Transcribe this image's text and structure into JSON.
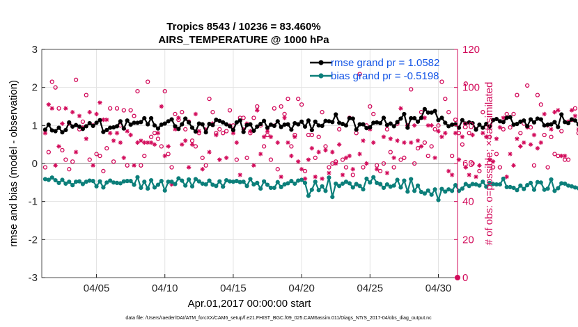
{
  "chart_data": {
    "type": "line",
    "title": "Tropics 8543 / 10236 = 83.460%",
    "subtitle": "AIRS_TEMPERATURE @ 1000 hPa",
    "xlabel": "Apr.01,2017 00:00:00 start",
    "ylabel_left": "rmse and bias (model - observation)",
    "ylabel_right": "# of obs: o=possible; ×=assimilated",
    "footer": "data file: /Users/raeder/DAI/ATM_forcXX/CAM6_setup/f.e21.FHIST_BGC.f09_025.CAM6assim.011/Diags_NTrS_2017-04/obs_diag_output.nc",
    "x_range_days": [
      1,
      31.4
    ],
    "x_tick_values": [
      5,
      10,
      15,
      20,
      25,
      30
    ],
    "x_tick_labels": [
      "04/05",
      "04/10",
      "04/15",
      "04/20",
      "04/25",
      "04/30"
    ],
    "ylim_left": [
      -3,
      3
    ],
    "y_ticks_left": [
      "3",
      "2",
      "1",
      "0",
      "-1",
      "-2",
      "-3"
    ],
    "ylim_right": [
      0,
      120
    ],
    "y_ticks_right": [
      "120",
      "100",
      "80",
      "60",
      "40",
      "20",
      "0"
    ],
    "zero_line": 0,
    "legend": {
      "rmse_label": "rmse grand pr = 1.0582",
      "bias_label": "bias grand pr = -0.5198",
      "placement": "top-right"
    },
    "colors": {
      "rmse": "#000000",
      "bias": "#0c7f7a",
      "obs": "#d20a5a",
      "legend_text": "#1455e6"
    },
    "start_day": 1.25,
    "step_days": 0.25,
    "series": [
      {
        "name": "rmse",
        "axis": "left",
        "values": [
          0.89,
          1.02,
          0.87,
          0.85,
          0.94,
          0.82,
          0.88,
          1.08,
          0.97,
          1.01,
          0.97,
          0.91,
          0.98,
          1.06,
          0.99,
          1.07,
          1.14,
          0.83,
          0.88,
          0.94,
          0.95,
          0.98,
          1.11,
          0.92,
          1.13,
          1.02,
          1.07,
          1.07,
          1.09,
          1.19,
          1.03,
          1.19,
          1.0,
          0.92,
          1.02,
          1.05,
          1.11,
          1.16,
          0.98,
          0.91,
          1.03,
          1.18,
          1.08,
          0.94,
          0.84,
          1.05,
          1.03,
          0.82,
          1.04,
          1.01,
          1.15,
          1.12,
          1.08,
          1.03,
          0.98,
          0.88,
          1.08,
          1.13,
          0.83,
          1.01,
          1.03,
          0.86,
          0.97,
          1.04,
          1.12,
          0.94,
          1.02,
          0.99,
          1.11,
          0.96,
          1.02,
          1.03,
          0.89,
          1.06,
          1.03,
          1.1,
          0.97,
          1.13,
          0.88,
          1.1,
          1.0,
          0.99,
          1.12,
          1.11,
          1.09,
          1.29,
          1.07,
          1.04,
          1.0,
          1.19,
          1.18,
          0.89,
          1.03,
          1.03,
          0.93,
          0.95,
          1.07,
          1.08,
          1.06,
          1.2,
          1.01,
          1.05,
          0.98,
          1.09,
          1.18,
          1.3,
          0.94,
          1.19,
          1.19,
          1.1,
          1.2,
          1.43,
          1.34,
          1.34,
          1.38,
          1.14,
          1.2,
          1.07,
          0.98,
          1.02,
          1.03,
          0.94,
          1.14,
          1.05,
          1.08,
          1.06,
          0.89,
          1.02,
          0.94,
          1.04,
          0.97,
          1.14,
          1.17,
          1.11,
          1.09,
          1.2,
          1.22,
          1.02,
          1.04,
          1.1,
          1.13,
          0.98,
          1.16,
          1.08,
          1.18,
          1.16,
          1.0,
          1.02,
          1.03,
          1.09,
          0.96,
          1.29,
          1.09,
          1.06,
          1.16,
          1.13,
          1.03,
          1.06,
          1.01,
          1.11,
          0.97,
          1.11,
          1.15,
          1.05,
          0.97,
          1.04,
          1.15,
          1.19,
          1.07,
          1.2,
          1.04,
          1.12,
          1.1,
          0.96,
          1.1,
          1.0,
          1.15,
          1.07,
          1.17,
          1.04,
          1.02,
          1.03,
          1.03,
          1.11,
          0.96,
          1.18,
          1.01,
          1.06,
          0.95,
          1.03,
          1.1,
          1.05,
          1.12,
          1.08,
          1.23,
          1.15,
          1.09,
          1.14,
          1.04,
          1.11,
          0.92,
          1.02,
          0.98,
          0.94,
          1.02,
          1.06,
          0.95,
          1.08,
          1.05,
          0.98,
          1.27,
          0.96,
          1.09,
          0.93,
          0.98,
          0.94,
          1.1,
          0.96,
          0.99,
          1.16,
          1.09,
          1.05,
          1.13,
          1.09,
          1.2,
          1.11,
          1.05,
          1.15,
          1.11,
          1.1,
          1.04,
          1.22,
          1.12,
          1.14,
          1.12,
          1.16,
          1.07,
          1.01,
          1.15,
          1.09,
          1.18,
          1.14,
          1.04,
          1.17,
          1.05,
          1.24,
          1.07,
          1.11,
          1.18,
          1.21,
          1.08,
          1.05,
          1.16,
          1.1,
          1.12,
          1.16,
          1.04,
          1.14,
          1.05,
          1.12,
          1.11,
          1.15,
          1.25,
          1.18,
          1.07,
          1.12,
          1.11,
          1.18,
          1.13
        ]
      },
      {
        "name": "bias",
        "axis": "left",
        "values": [
          -0.41,
          -0.43,
          -0.37,
          -0.44,
          -0.51,
          -0.43,
          -0.53,
          -0.48,
          -0.57,
          -0.48,
          -0.47,
          -0.54,
          -0.48,
          -0.45,
          -0.46,
          -0.6,
          -0.47,
          -0.63,
          -0.5,
          -0.45,
          -0.5,
          -0.51,
          -0.52,
          -0.47,
          -0.46,
          -0.46,
          -0.56,
          -0.36,
          -0.64,
          -0.48,
          -0.66,
          -0.44,
          -0.63,
          -0.56,
          -0.46,
          -0.71,
          -0.48,
          -0.48,
          -0.54,
          -0.39,
          -0.45,
          -0.58,
          -0.42,
          -0.6,
          -0.41,
          -0.47,
          -0.53,
          -0.55,
          -0.45,
          -0.56,
          -0.59,
          -0.47,
          -0.61,
          -0.44,
          -0.47,
          -0.48,
          -0.46,
          -0.49,
          -0.48,
          -0.59,
          -0.41,
          -0.55,
          -0.51,
          -0.66,
          -0.47,
          -0.56,
          -0.64,
          -0.64,
          -0.49,
          -0.62,
          -0.55,
          -0.52,
          -0.46,
          -0.53,
          -0.45,
          -0.43,
          -0.51,
          -0.85,
          -0.69,
          -0.48,
          -0.7,
          -0.6,
          -0.72,
          -0.37,
          -0.88,
          -0.53,
          -0.59,
          -0.53,
          -0.48,
          -0.52,
          -0.63,
          -0.54,
          -0.59,
          -0.68,
          -0.4,
          -0.5,
          -0.36,
          -0.51,
          -0.54,
          -0.64,
          -0.55,
          -0.61,
          -0.58,
          -0.43,
          -0.63,
          -0.45,
          -0.74,
          -0.41,
          -0.72,
          -0.58,
          -0.75,
          -0.79,
          -0.71,
          -0.82,
          -0.68,
          -0.96,
          -0.67,
          -0.74,
          -0.68,
          -0.72,
          -0.57,
          -0.72,
          -0.66,
          -0.54,
          -0.59,
          -0.54,
          -0.55,
          -0.58,
          -0.48,
          -0.61,
          -0.51,
          -0.54,
          -0.55,
          -0.55,
          -0.4,
          -0.62,
          -0.62,
          -0.64,
          -0.7,
          -0.58,
          -0.67,
          -0.57,
          -0.51,
          -0.69,
          -0.49,
          -0.5,
          -0.69,
          -0.66,
          -0.42,
          -0.72,
          -0.65,
          -0.52,
          -0.53,
          -0.58,
          -0.6,
          -0.63,
          -0.65,
          -0.49,
          -0.59,
          -0.51,
          -0.52,
          -0.6,
          -0.59,
          -0.59,
          -0.53,
          -0.56,
          -0.52,
          -0.41,
          -0.61,
          -0.46,
          -0.42,
          -0.6,
          -0.57,
          -0.59,
          -0.65,
          -0.47,
          -0.59,
          -0.55,
          -0.54,
          -0.63,
          -0.45,
          -0.57,
          -0.51,
          -0.58,
          -0.5,
          -0.57,
          -0.51,
          -0.56,
          -0.45,
          -0.49,
          -0.6,
          -0.45,
          -0.55,
          -0.43,
          -0.6,
          -0.42,
          -0.57,
          -0.62,
          -0.58,
          -0.46,
          -0.52,
          -0.59,
          -0.43,
          -0.51,
          -0.57,
          -0.58,
          -0.51,
          -0.62,
          -0.52,
          -0.64,
          -0.51,
          -0.5,
          -0.58,
          -0.47,
          -0.55,
          -0.6,
          -0.46,
          -0.52,
          -0.45,
          -0.55,
          -0.59,
          -0.5,
          -0.56,
          -0.52,
          -0.57,
          -0.51,
          -0.46,
          -0.48,
          -0.48,
          -0.56,
          -0.59,
          -0.51,
          -0.66,
          -0.47,
          -0.49,
          -0.6,
          -0.56,
          -0.55,
          -0.5,
          -0.43,
          -0.5,
          -0.53,
          -0.54,
          -0.45,
          -0.58,
          -0.5,
          -0.39,
          -0.53,
          -0.48,
          -0.59,
          -0.51,
          -0.62,
          -0.55,
          -0.6,
          -0.46,
          -0.56,
          -0.51,
          -0.61,
          -0.55,
          -0.49,
          -0.65,
          -0.6,
          -0.63,
          -0.54,
          -0.51,
          -0.38,
          -0.57,
          -0.49,
          -0.66,
          -0.64,
          -0.59
        ]
      },
      {
        "name": "obs possible",
        "axis": "right",
        "values": [
          58,
          66,
          103,
          100,
          89,
          67,
          62,
          57,
          61,
          104,
          78,
          82,
          96,
          62,
          80,
          65,
          64,
          56,
          68,
          89,
          61,
          89,
          80,
          88,
          59,
          88,
          85,
          98,
          59,
          64,
          103,
          74,
          76,
          73,
          69,
          98,
          65,
          58,
          86,
          83,
          87,
          78,
          82,
          72,
          69,
          76,
          63,
          59,
          94,
          87,
          76,
          78,
          76,
          77,
          88,
          80,
          62,
          84,
          84,
          63,
          76,
          84,
          90,
          80,
          69,
          75,
          62,
          89,
          57,
          90,
          86,
          94,
          69,
          75,
          94,
          91,
          56,
          75,
          75,
          63,
          74,
          87,
          69,
          58,
          60,
          61,
          78,
          62,
          58,
          84,
          54,
          76,
          107,
          58,
          80,
          90,
          86,
          59,
          56,
          60,
          78,
          66,
          58,
          81,
          62,
          63,
          80,
          99,
          60,
          68,
          87,
          71,
          64,
          69,
          78,
          80,
          103,
          94,
          87,
          64,
          83,
          76,
          70,
          102,
          76,
          60,
          78,
          56,
          87,
          79,
          74,
          58,
          65,
          58,
          78,
          86,
          79,
          86,
          96,
          76,
          81,
          101,
          79,
          59,
          96,
          91,
          75,
          58,
          74,
          65,
          64,
          77,
          62,
          62,
          83,
          89,
          76,
          76,
          66,
          80,
          101,
          103,
          85,
          77,
          83,
          89,
          74,
          66,
          76,
          75,
          58,
          72,
          60,
          58,
          88,
          76,
          56,
          88,
          78,
          90,
          89,
          63,
          90,
          71,
          64,
          91,
          89,
          90,
          64,
          80,
          72,
          74,
          74,
          76,
          78,
          98,
          80,
          77,
          74,
          84,
          84,
          89,
          99,
          77,
          86,
          104,
          97,
          97,
          85,
          62,
          68,
          95,
          93,
          77,
          63,
          71,
          96,
          96,
          75,
          75,
          105,
          67,
          90,
          83,
          73,
          68,
          71,
          85,
          64,
          63,
          91,
          93,
          72,
          63,
          86,
          70,
          104,
          90,
          80,
          88,
          86,
          62,
          78,
          63,
          76,
          72,
          106,
          87,
          86,
          86,
          58,
          84,
          79,
          92,
          105,
          79,
          83,
          78,
          89,
          89,
          92,
          83,
          81,
          101,
          85,
          103
        ]
      },
      {
        "name": "obs assimilated",
        "axis": "right",
        "values": [
          76,
          91,
          89,
          59,
          69,
          81,
          89,
          81,
          87,
          66,
          85,
          79,
          73,
          87,
          59,
          86,
          92,
          83,
          83,
          76,
          72,
          76,
          71,
          63,
          77,
          75,
          59,
          71,
          72,
          71,
          71,
          71,
          70,
          76,
          90,
          64,
          69,
          49,
          78,
          84,
          70,
          72,
          58,
          70,
          86,
          77,
          57,
          78,
          66,
          81,
          75,
          62,
          48,
          63,
          80,
          76,
          71,
          54,
          78,
          81,
          77,
          59,
          88,
          65,
          74,
          77,
          74,
          80,
          71,
          53,
          84,
          71,
          64,
          74,
          61,
          57,
          52,
          62,
          68,
          53,
          66,
          52,
          67,
          55,
          66,
          60,
          70,
          54,
          63,
          64,
          57,
          49,
          65,
          72,
          60,
          78,
          71,
          57,
          49,
          74,
          55,
          73,
          63,
          72,
          89,
          71,
          80,
          71,
          80,
          72,
          69,
          84,
          80,
          80,
          63,
          77,
          74,
          76,
          56,
          54,
          76,
          62,
          74,
          58,
          54,
          75,
          53,
          59,
          76,
          74,
          62,
          61,
          73,
          79,
          84,
          53,
          65,
          59,
          73,
          69,
          71,
          79,
          70,
          75,
          68,
          71,
          86,
          80,
          78,
          87,
          88,
          64,
          64,
          82,
          88,
          85,
          78,
          70,
          77,
          58,
          85,
          73,
          85,
          89,
          86,
          80,
          82,
          57,
          57,
          84,
          84,
          61,
          71,
          81,
          70,
          79,
          64,
          79,
          73,
          85,
          66,
          80,
          61,
          72,
          90,
          83,
          74,
          83,
          74,
          79,
          76,
          87,
          78,
          74,
          78,
          73,
          77,
          81,
          79,
          58,
          68,
          63,
          77,
          86,
          71,
          79,
          64,
          70,
          89,
          65,
          73,
          70,
          64,
          77,
          68,
          77,
          62,
          87,
          73,
          61,
          62,
          62,
          78,
          85,
          81,
          68,
          71,
          73,
          72,
          77,
          74,
          66,
          84,
          82,
          80,
          76,
          71,
          69,
          73,
          58,
          88,
          73,
          87,
          66,
          75,
          67,
          80,
          61,
          74,
          64,
          78,
          74,
          73,
          73,
          71,
          80,
          73,
          86,
          71,
          76,
          77,
          70,
          79,
          72,
          62,
          80
        ]
      }
    ]
  }
}
